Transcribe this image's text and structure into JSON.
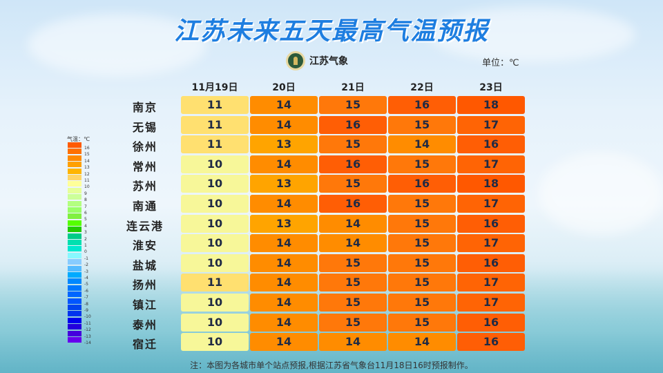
{
  "title": "江苏未来五天最高气温预报",
  "logo_text": "江苏气象",
  "unit": "单位：℃",
  "columns": [
    "11月19日",
    "20日",
    "21日",
    "22日",
    "23日"
  ],
  "rows": [
    {
      "city": "南京",
      "values": [
        11,
        14,
        15,
        16,
        18
      ]
    },
    {
      "city": "无锡",
      "values": [
        11,
        14,
        16,
        15,
        17
      ]
    },
    {
      "city": "徐州",
      "values": [
        11,
        13,
        15,
        14,
        16
      ]
    },
    {
      "city": "常州",
      "values": [
        10,
        14,
        16,
        15,
        17
      ]
    },
    {
      "city": "苏州",
      "values": [
        10,
        13,
        15,
        16,
        18
      ]
    },
    {
      "city": "南通",
      "values": [
        10,
        14,
        16,
        15,
        17
      ]
    },
    {
      "city": "连云港",
      "values": [
        10,
        13,
        14,
        15,
        16
      ]
    },
    {
      "city": "淮安",
      "values": [
        10,
        14,
        14,
        15,
        17
      ]
    },
    {
      "city": "盐城",
      "values": [
        10,
        14,
        15,
        15,
        16
      ]
    },
    {
      "city": "扬州",
      "values": [
        11,
        14,
        15,
        15,
        17
      ]
    },
    {
      "city": "镇江",
      "values": [
        10,
        14,
        15,
        15,
        17
      ]
    },
    {
      "city": "泰州",
      "values": [
        10,
        14,
        15,
        15,
        16
      ]
    },
    {
      "city": "宿迁",
      "values": [
        10,
        14,
        14,
        14,
        16
      ]
    }
  ],
  "value_colors": {
    "10": "#f7f799",
    "11": "#ffe070",
    "13": "#ffa400",
    "14": "#ff8c00",
    "15": "#ff780a",
    "16": "#ff5e05",
    "17": "#ff6405",
    "18": "#ff5800"
  },
  "legend": {
    "title": "气温：℃",
    "labels": [
      "16",
      "15",
      "14",
      "13",
      "12",
      "11",
      "10",
      "9",
      "8",
      "7",
      "6",
      "5",
      "4",
      "3",
      "2",
      "1",
      "0",
      "-1",
      "-2",
      "-3",
      "-4",
      "-5",
      "-6",
      "-7",
      "-8",
      "-9",
      "-10",
      "-11",
      "-12",
      "-13",
      "-14"
    ],
    "colors": [
      "#ff5a00",
      "#ff7000",
      "#ff8a00",
      "#ffa000",
      "#ffb400",
      "#ffd566",
      "#ffff99",
      "#e6ff99",
      "#ccff99",
      "#b3ff80",
      "#99ff66",
      "#80f040",
      "#55ff00",
      "#22cc00",
      "#00cc88",
      "#00e0b0",
      "#00e8d0",
      "#88f8ff",
      "#88ccff",
      "#55bbff",
      "#00aaff",
      "#0088ff",
      "#0077ff",
      "#0066ff",
      "#0055ff",
      "#0044ee",
      "#0033ee",
      "#0000ee",
      "#2200dd",
      "#4400dd",
      "#6600ee"
    ]
  },
  "note": "注：本图为各城市单个站点预报,根据江苏省气象台11月18日16时预报制作。"
}
